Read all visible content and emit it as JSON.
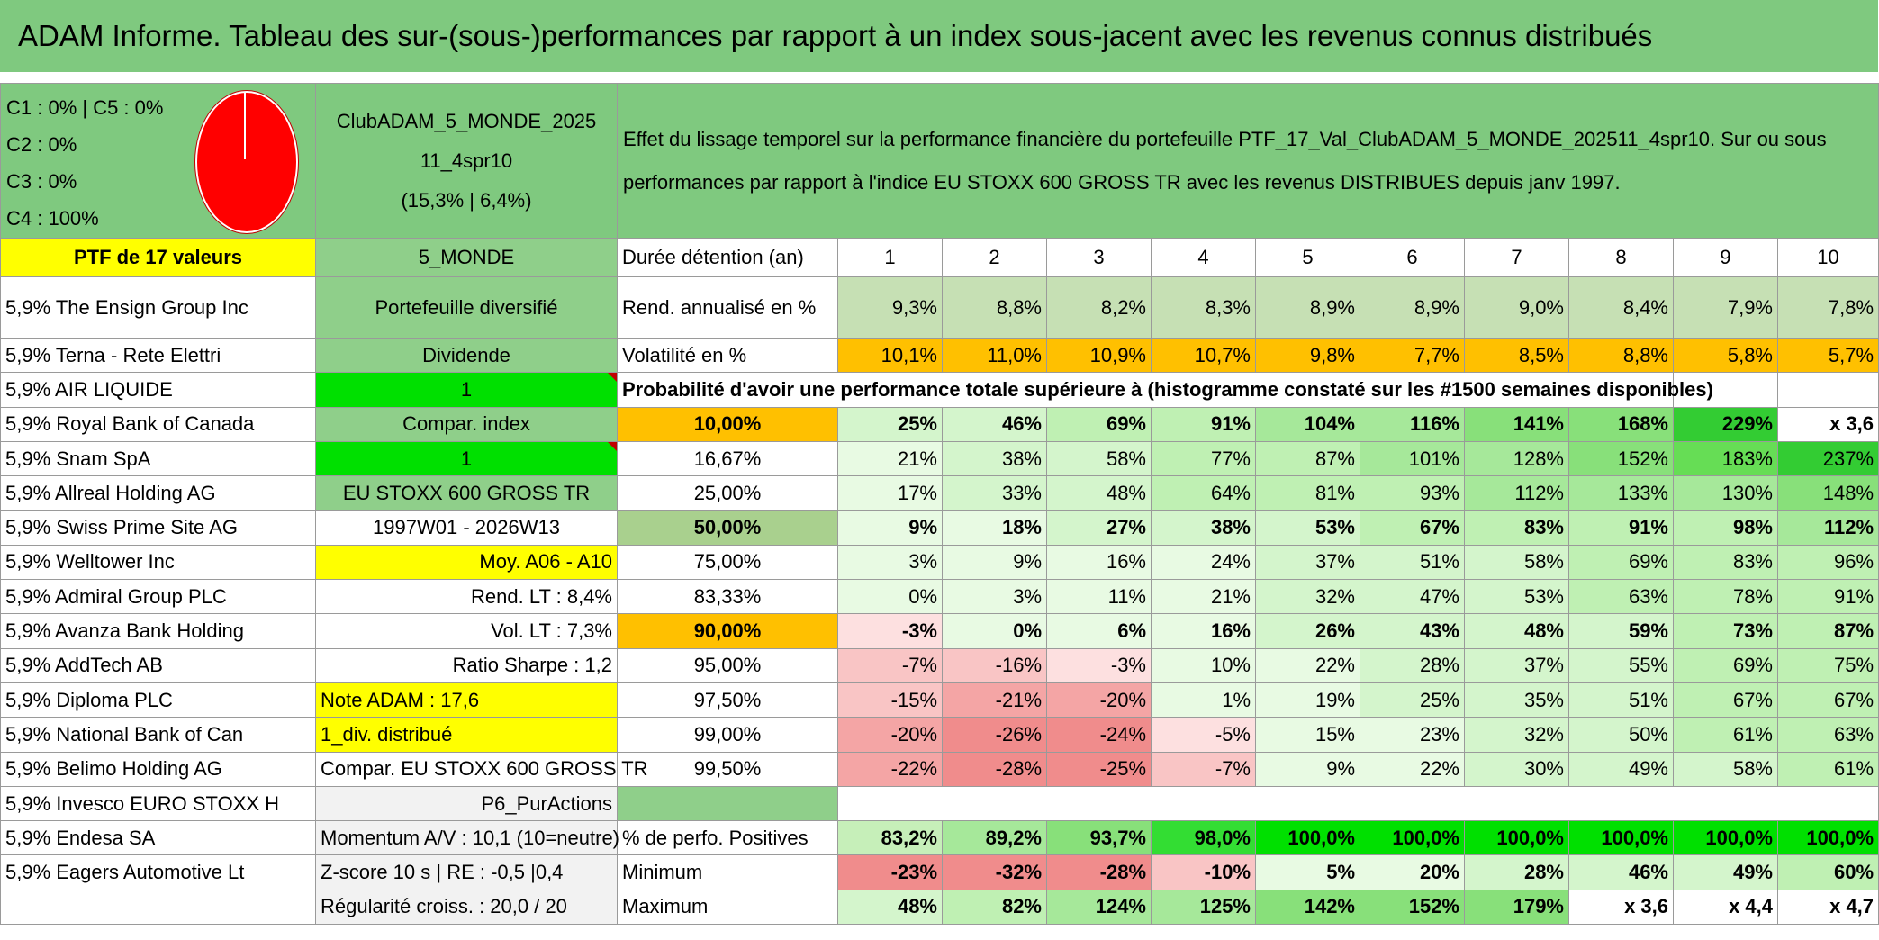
{
  "title": "ADAM Informe. Tableau des sur-(sous-)performances par rapport à un index sous-jacent avec les revenus connus distribués",
  "pie_legend": [
    "C1 : 0% | C5 : 0%",
    "C2 : 0%",
    "C3 : 0%",
    "C4 : 100%"
  ],
  "pie_chart": {
    "C1": 0,
    "C2": 0,
    "C3": 0,
    "C4": 100,
    "C5": 0,
    "color": "#ff0000"
  },
  "club": {
    "name_line1": "ClubADAM_5_MONDE_2025",
    "name_line2": "11_4spr10",
    "stats": "(15,3% | 6,4%)"
  },
  "description": "Effet du lissage temporel sur la performance financière du portefeuille PTF_17_Val_ClubADAM_5_MONDE_202511_4spr10. Sur ou sous performances par rapport à l'indice EU STOXX 600 GROSS TR avec les revenus DISTRIBUES depuis janv 1997.",
  "portfolio_label": "PTF de 17 valeurs",
  "zone": "5_MONDE",
  "holding_period_label": "Durée détention (an)",
  "years": [
    "1",
    "2",
    "3",
    "4",
    "5",
    "6",
    "7",
    "8",
    "9",
    "10"
  ],
  "holdings": [
    "5,9% The Ensign Group Inc",
    "5,9% Terna - Rete Elettri",
    "5,9% AIR LIQUIDE",
    "5,9% Royal Bank of Canada",
    "5,9% Snam SpA",
    "5,9% Allreal Holding AG",
    "5,9% Swiss Prime Site AG",
    "5,9% Welltower Inc",
    "5,9% Admiral Group PLC",
    "5,9% Avanza Bank Holding",
    "5,9% AddTech AB",
    "5,9% Diploma PLC",
    "5,9% National Bank of Can",
    "5,9% Belimo Holding AG",
    "5,9% Invesco EURO STOXX H",
    "5,9% Endesa SA",
    "5,9% Eagers Automotive Lt",
    ""
  ],
  "info": [
    "Portefeuille diversifié",
    "Dividende",
    "1",
    "Compar. index",
    "1",
    "EU STOXX 600 GROSS TR",
    "1997W01 - 2026W13",
    "Moy. A06 - A10",
    "Rend. LT : 8,4%",
    "Vol. LT : 7,3%",
    "Ratio Sharpe : 1,2",
    "Note ADAM : 17,6",
    "1_div. distribué",
    "Compar. EU STOXX 600 GROSS TR",
    "P6_PurActions",
    "Momentum A/V : 10,1 (10=neutre)",
    "Z-score 10 s | RE : -0,5 |0,4",
    "Régularité croiss. : 20,0 / 20"
  ],
  "rend_label": "Rend. annualisé en %",
  "rend": [
    "9,3%",
    "8,8%",
    "8,2%",
    "8,3%",
    "8,9%",
    "8,9%",
    "9,0%",
    "8,4%",
    "7,9%",
    "7,8%"
  ],
  "vol_label": "Volatilité en %",
  "vol": [
    "10,1%",
    "11,0%",
    "10,9%",
    "10,7%",
    "9,8%",
    "7,7%",
    "8,5%",
    "8,8%",
    "5,8%",
    "5,7%"
  ],
  "prob_title": "Probabilité d'avoir une performance totale supérieure à (histogramme constaté sur les #1500 semaines disponibles)",
  "prob_rows": [
    {
      "p": "10,00%",
      "v": [
        "25%",
        "46%",
        "69%",
        "91%",
        "104%",
        "116%",
        "141%",
        "168%",
        "229%",
        "x 3,6"
      ]
    },
    {
      "p": "16,67%",
      "v": [
        "21%",
        "38%",
        "58%",
        "77%",
        "87%",
        "101%",
        "128%",
        "152%",
        "183%",
        "237%"
      ]
    },
    {
      "p": "25,00%",
      "v": [
        "17%",
        "33%",
        "48%",
        "64%",
        "81%",
        "93%",
        "112%",
        "133%",
        "130%",
        "148%"
      ]
    },
    {
      "p": "50,00%",
      "v": [
        "9%",
        "18%",
        "27%",
        "38%",
        "53%",
        "67%",
        "83%",
        "91%",
        "98%",
        "112%"
      ]
    },
    {
      "p": "75,00%",
      "v": [
        "3%",
        "9%",
        "16%",
        "24%",
        "37%",
        "51%",
        "58%",
        "69%",
        "83%",
        "96%"
      ]
    },
    {
      "p": "83,33%",
      "v": [
        "0%",
        "3%",
        "11%",
        "21%",
        "32%",
        "47%",
        "53%",
        "63%",
        "78%",
        "91%"
      ]
    },
    {
      "p": "90,00%",
      "v": [
        "-3%",
        "0%",
        "6%",
        "16%",
        "26%",
        "43%",
        "48%",
        "59%",
        "73%",
        "87%"
      ]
    },
    {
      "p": "95,00%",
      "v": [
        "-7%",
        "-16%",
        "-3%",
        "10%",
        "22%",
        "28%",
        "37%",
        "55%",
        "69%",
        "75%"
      ]
    },
    {
      "p": "97,50%",
      "v": [
        "-15%",
        "-21%",
        "-20%",
        "1%",
        "19%",
        "25%",
        "35%",
        "51%",
        "67%",
        "67%"
      ]
    },
    {
      "p": "99,00%",
      "v": [
        "-20%",
        "-26%",
        "-24%",
        "-5%",
        "15%",
        "23%",
        "32%",
        "50%",
        "61%",
        "63%"
      ]
    },
    {
      "p": "99,50%",
      "v": [
        "-22%",
        "-28%",
        "-25%",
        "-7%",
        "9%",
        "22%",
        "30%",
        "49%",
        "58%",
        "61%"
      ]
    }
  ],
  "pos_label": "% de perfo. Positives",
  "pos": [
    "83,2%",
    "89,2%",
    "93,7%",
    "98,0%",
    "100,0%",
    "100,0%",
    "100,0%",
    "100,0%",
    "100,0%",
    "100,0%"
  ],
  "min_label": "Minimum",
  "min": [
    "-23%",
    "-32%",
    "-28%",
    "-10%",
    "5%",
    "20%",
    "28%",
    "46%",
    "49%",
    "60%"
  ],
  "max_label": "Maximum",
  "max": [
    "48%",
    "82%",
    "124%",
    "125%",
    "142%",
    "152%",
    "179%",
    "x 3,6",
    "x 4,4",
    "x 4,7"
  ],
  "colors": {
    "header_green": "#7fc97f",
    "yellow": "#ffff00",
    "bright_green": "#00e000",
    "orange": "#ffc000",
    "red_text": "#e00000",
    "pie_red": "#ff0000"
  }
}
